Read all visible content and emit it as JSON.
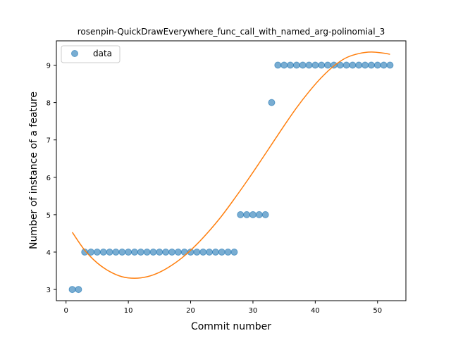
{
  "chart_data": {
    "type": "scatter",
    "title": "rosenpin-QuickDrawEverywhere_func_call_with_named_arg-polinomial_3",
    "xlabel": "Commit number",
    "ylabel": "Number of instance of a feature",
    "xlim": [
      -1.55,
      54.55
    ],
    "ylim": [
      2.7,
      9.65
    ],
    "xticks": [
      0,
      10,
      20,
      30,
      40,
      50
    ],
    "yticks": [
      3,
      4,
      5,
      6,
      7,
      8,
      9
    ],
    "legend_position": "upper-left",
    "series": [
      {
        "name": "data",
        "kind": "scatter",
        "color": "#1f77b4",
        "x": [
          1,
          2,
          3,
          4,
          5,
          6,
          7,
          8,
          9,
          10,
          11,
          12,
          13,
          14,
          15,
          16,
          17,
          18,
          19,
          20,
          21,
          22,
          23,
          24,
          25,
          26,
          27,
          28,
          29,
          30,
          31,
          32,
          33,
          34,
          35,
          36,
          37,
          38,
          39,
          40,
          41,
          42,
          43,
          44,
          45,
          46,
          47,
          48,
          49,
          50,
          51,
          52
        ],
        "y": [
          3,
          3,
          4,
          4,
          4,
          4,
          4,
          4,
          4,
          4,
          4,
          4,
          4,
          4,
          4,
          4,
          4,
          4,
          4,
          4,
          4,
          4,
          4,
          4,
          4,
          4,
          4,
          5,
          5,
          5,
          5,
          5,
          8,
          9,
          9,
          9,
          9,
          9,
          9,
          9,
          9,
          9,
          9,
          9,
          9,
          9,
          9,
          9,
          9,
          9,
          9,
          9
        ]
      },
      {
        "kind": "line",
        "color": "#ff7f0e",
        "x": [
          1,
          3,
          5,
          7,
          9,
          11,
          13,
          15,
          17,
          19,
          21,
          23,
          25,
          27,
          29,
          31,
          33,
          35,
          37,
          39,
          41,
          43,
          45,
          47,
          49,
          51,
          52
        ],
        "y": [
          4.53,
          4.05,
          3.71,
          3.48,
          3.34,
          3.3,
          3.34,
          3.46,
          3.65,
          3.9,
          4.21,
          4.57,
          4.97,
          5.42,
          5.89,
          6.38,
          6.88,
          7.38,
          7.86,
          8.29,
          8.67,
          8.98,
          9.2,
          9.31,
          9.35,
          9.32,
          9.29
        ]
      }
    ]
  }
}
